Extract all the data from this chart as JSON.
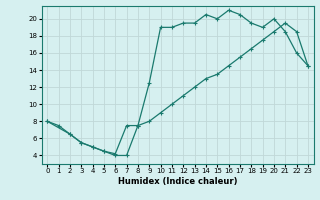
{
  "xlabel": "Humidex (Indice chaleur)",
  "ylabel": "",
  "bg_color": "#d6f0f0",
  "line_color": "#1a7a6e",
  "grid_color": "#c0d8d8",
  "xlim": [
    -0.5,
    23.5
  ],
  "ylim": [
    3,
    21.5
  ],
  "xticks": [
    0,
    1,
    2,
    3,
    4,
    5,
    6,
    7,
    8,
    9,
    10,
    11,
    12,
    13,
    14,
    15,
    16,
    17,
    18,
    19,
    20,
    21,
    22,
    23
  ],
  "yticks": [
    4,
    6,
    8,
    10,
    12,
    14,
    16,
    18,
    20
  ],
  "series1_x": [
    0,
    1,
    2,
    3,
    4,
    5,
    6,
    7,
    8,
    9,
    10,
    11,
    12,
    13,
    14,
    15,
    16,
    17,
    18,
    19,
    20,
    21,
    22,
    23
  ],
  "series1_y": [
    8,
    7.5,
    6.5,
    5.5,
    5.0,
    4.5,
    4.0,
    4.0,
    7.5,
    12.5,
    19,
    19,
    19.5,
    19.5,
    20.5,
    20.0,
    21.0,
    20.5,
    19.5,
    19.0,
    20.0,
    18.5,
    16.0,
    14.5
  ],
  "series2_x": [
    0,
    2,
    3,
    4,
    5,
    6,
    7,
    8,
    9,
    10,
    11,
    12,
    13,
    14,
    15,
    16,
    17,
    18,
    19,
    20,
    21,
    22,
    23
  ],
  "series2_y": [
    8,
    6.5,
    5.5,
    5.0,
    4.5,
    4.2,
    7.5,
    7.5,
    8.0,
    9.0,
    10.0,
    11.0,
    12.0,
    13.0,
    13.5,
    14.5,
    15.5,
    16.5,
    17.5,
    18.5,
    19.5,
    18.5,
    14.5
  ]
}
